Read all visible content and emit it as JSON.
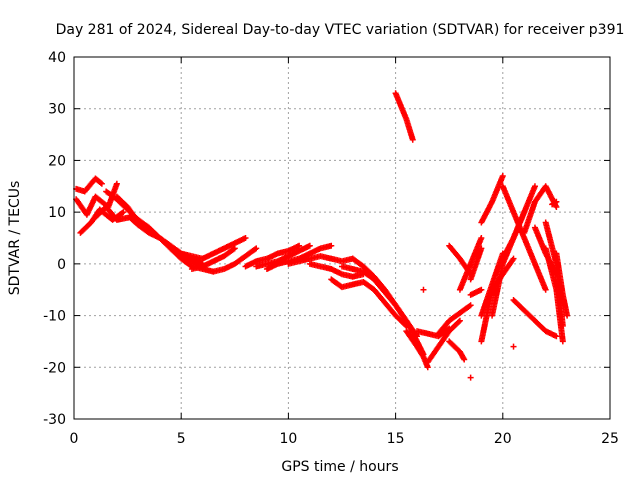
{
  "chart_data": {
    "type": "scatter",
    "title": "Day 281 of 2024, Sidereal Day-to-day VTEC variation (SDTVAR) for receiver p391",
    "xlabel": "GPS time / hours",
    "ylabel": "SDTVAR / TECUs",
    "xlim": [
      0,
      25
    ],
    "ylim": [
      -30,
      40
    ],
    "xticks": [
      0,
      5,
      10,
      15,
      20,
      25
    ],
    "yticks": [
      -30,
      -20,
      -10,
      0,
      10,
      20,
      30,
      40
    ],
    "grid": true,
    "marker": "+",
    "color": "#ff0000",
    "series": [
      {
        "name": "s01",
        "x": [
          0.1,
          0.5,
          1.0,
          1.3
        ],
        "y": [
          14.5,
          14.0,
          16.5,
          15.5
        ]
      },
      {
        "name": "s02",
        "x": [
          0.1,
          0.6,
          1.0,
          1.6,
          2.0
        ],
        "y": [
          12.5,
          9.5,
          13.0,
          11.0,
          15.5
        ]
      },
      {
        "name": "s03",
        "x": [
          0.3,
          0.8,
          1.2,
          1.8,
          2.3
        ],
        "y": [
          6.0,
          8.0,
          10.5,
          8.5,
          10.0
        ]
      },
      {
        "name": "s04",
        "x": [
          1.0,
          1.5,
          2.0,
          2.6,
          3.0,
          3.5,
          4.0,
          4.5,
          5.0,
          5.5,
          6.0
        ],
        "y": [
          9.0,
          11.0,
          8.5,
          9.0,
          7.5,
          6.0,
          5.0,
          3.5,
          2.0,
          1.0,
          0.0
        ]
      },
      {
        "name": "s05",
        "x": [
          1.5,
          2.0,
          2.5,
          3.0,
          3.5,
          4.0,
          4.5,
          5.0,
          5.5,
          6.0
        ],
        "y": [
          14.0,
          12.5,
          10.5,
          8.5,
          7.0,
          5.0,
          3.5,
          2.0,
          1.5,
          1.0
        ]
      },
      {
        "name": "s06",
        "x": [
          2.0,
          2.5,
          3.0,
          3.5,
          4.0,
          4.5,
          5.0,
          5.5,
          6.0
        ],
        "y": [
          13.0,
          11.0,
          8.0,
          6.5,
          5.0,
          3.0,
          1.5,
          0.5,
          -0.5
        ]
      },
      {
        "name": "s07",
        "x": [
          4.5,
          5.0,
          5.5,
          6.0,
          6.5
        ],
        "y": [
          3.0,
          1.0,
          -0.5,
          -1.0,
          -1.5
        ]
      },
      {
        "name": "s08",
        "x": [
          5.5,
          6.0,
          6.5,
          7.0,
          7.5
        ],
        "y": [
          -1.0,
          -0.5,
          0.5,
          1.5,
          3.0
        ]
      },
      {
        "name": "s09",
        "x": [
          6.0,
          6.5,
          7.0,
          7.5,
          8.0
        ],
        "y": [
          1.0,
          2.0,
          3.0,
          4.0,
          5.0
        ]
      },
      {
        "name": "s10",
        "x": [
          6.5,
          7.0,
          7.5,
          8.0,
          8.5
        ],
        "y": [
          -1.5,
          -1.0,
          0.0,
          1.5,
          3.0
        ]
      },
      {
        "name": "s11",
        "x": [
          8.0,
          8.5,
          9.0,
          9.5,
          10.0,
          10.5
        ],
        "y": [
          -0.5,
          0.5,
          1.0,
          2.0,
          2.5,
          3.5
        ]
      },
      {
        "name": "s12",
        "x": [
          8.5,
          9.0,
          9.5,
          10.0,
          10.5,
          11.0
        ],
        "y": [
          -0.5,
          0.0,
          0.5,
          1.5,
          2.5,
          3.5
        ]
      },
      {
        "name": "s13",
        "x": [
          9.0,
          9.5,
          10.0,
          10.5,
          11.0,
          11.5,
          12.0
        ],
        "y": [
          -1.0,
          0.0,
          0.5,
          1.0,
          2.0,
          3.0,
          3.5
        ]
      },
      {
        "name": "s14",
        "x": [
          10.0,
          10.5,
          11.0,
          11.5,
          12.0,
          12.5,
          13.0
        ],
        "y": [
          0.0,
          0.5,
          1.0,
          1.5,
          1.0,
          0.5,
          1.0
        ]
      },
      {
        "name": "s15",
        "x": [
          11.0,
          11.5,
          12.0,
          12.5,
          13.0,
          13.5
        ],
        "y": [
          0.0,
          -0.5,
          -1.0,
          -2.0,
          -2.5,
          -2.0
        ]
      },
      {
        "name": "s16",
        "x": [
          12.0,
          12.5,
          13.0,
          13.5,
          14.0,
          14.5,
          15.0,
          15.5
        ],
        "y": [
          -3.0,
          -4.5,
          -4.0,
          -3.5,
          -5.0,
          -7.5,
          -10.0,
          -12.0
        ]
      },
      {
        "name": "s17",
        "x": [
          12.5,
          13.0,
          13.5,
          14.0,
          14.5,
          15.0,
          15.5,
          16.0
        ],
        "y": [
          -0.5,
          -1.0,
          -1.5,
          -3.0,
          -5.5,
          -8.0,
          -11.0,
          -14.0
        ]
      },
      {
        "name": "s18",
        "x": [
          13.0,
          13.5,
          14.0,
          14.5,
          15.0,
          15.5,
          16.0,
          16.3
        ],
        "y": [
          1.0,
          -0.5,
          -2.5,
          -5.0,
          -8.0,
          -11.0,
          -15.0,
          -17.5
        ]
      },
      {
        "name": "s19",
        "x": [
          15.0,
          15.5,
          15.8
        ],
        "y": [
          33.0,
          28.0,
          24.0
        ]
      },
      {
        "name": "s20",
        "x": [
          15.5,
          16.0,
          16.3,
          16.5
        ],
        "y": [
          -13.0,
          -16.0,
          -18.0,
          -20.0
        ]
      },
      {
        "name": "s21",
        "x": [
          16.0,
          16.5,
          17.0,
          17.5
        ],
        "y": [
          -13.0,
          -13.5,
          -14.0,
          -12.5
        ]
      },
      {
        "name": "s22",
        "x": [
          16.3
        ],
        "y": [
          -5.0
        ]
      },
      {
        "name": "s23",
        "x": [
          16.5,
          17.0,
          17.5,
          18.0
        ],
        "y": [
          -19.0,
          -16.0,
          -13.0,
          -11.0
        ]
      },
      {
        "name": "s24",
        "x": [
          17.5,
          18.0,
          18.2
        ],
        "y": [
          -15.0,
          -17.0,
          -18.5
        ]
      },
      {
        "name": "s25",
        "x": [
          17.0,
          17.5,
          18.0,
          18.5
        ],
        "y": [
          -13.5,
          -11.0,
          -9.5,
          -8.0
        ]
      },
      {
        "name": "s26",
        "x": [
          17.5,
          18.0,
          18.5
        ],
        "y": [
          3.5,
          1.0,
          -2.0
        ]
      },
      {
        "name": "s27",
        "x": [
          18.5
        ],
        "y": [
          -22.0
        ]
      },
      {
        "name": "s28",
        "x": [
          18.5,
          19.0
        ],
        "y": [
          -6.0,
          -5.0
        ]
      },
      {
        "name": "s29",
        "x": [
          18.0,
          18.5,
          19.0
        ],
        "y": [
          -5.0,
          0.0,
          5.0
        ]
      },
      {
        "name": "s30",
        "x": [
          18.5,
          19.0
        ],
        "y": [
          -3.0,
          3.0
        ]
      },
      {
        "name": "s31",
        "x": [
          19.0,
          19.5,
          20.0
        ],
        "y": [
          8.0,
          12.0,
          17.0
        ]
      },
      {
        "name": "s32",
        "x": [
          19.0,
          19.5,
          20.0
        ],
        "y": [
          -10.0,
          -4.0,
          2.0
        ]
      },
      {
        "name": "s33",
        "x": [
          19.0,
          19.5,
          20.0,
          20.5
        ],
        "y": [
          -15.0,
          -5.0,
          -2.0,
          1.0
        ]
      },
      {
        "name": "s34",
        "x": [
          19.5,
          20.0,
          20.5,
          21.0
        ],
        "y": [
          -10.0,
          0.0,
          5.0,
          10.0
        ]
      },
      {
        "name": "s35",
        "x": [
          20.0,
          20.5,
          21.0,
          21.5
        ],
        "y": [
          1.0,
          5.0,
          10.0,
          15.0
        ]
      },
      {
        "name": "s36",
        "x": [
          20.0,
          20.5,
          21.0,
          21.5,
          22.0
        ],
        "y": [
          15.0,
          10.0,
          5.0,
          0.0,
          -5.0
        ]
      },
      {
        "name": "s37",
        "x": [
          20.5,
          21.0,
          21.5,
          22.0,
          22.5
        ],
        "y": [
          -7.0,
          -9.0,
          -11.0,
          -13.0,
          -14.0
        ]
      },
      {
        "name": "s38",
        "x": [
          20.5
        ],
        "y": [
          -16.0
        ]
      },
      {
        "name": "s39",
        "x": [
          21.0,
          21.5,
          22.0,
          22.5
        ],
        "y": [
          6.0,
          12.0,
          15.0,
          11.0
        ]
      },
      {
        "name": "s40",
        "x": [
          21.5,
          22.0,
          22.5
        ],
        "y": [
          7.0,
          2.0,
          -2.0
        ]
      },
      {
        "name": "s41",
        "x": [
          22.0,
          22.5,
          22.8
        ],
        "y": [
          8.0,
          0.0,
          -12.0
        ]
      },
      {
        "name": "s42",
        "x": [
          22.0,
          22.5,
          22.8
        ],
        "y": [
          3.0,
          -5.0,
          -15.0
        ]
      },
      {
        "name": "s43",
        "x": [
          22.5,
          22.8,
          23.0
        ],
        "y": [
          2.0,
          -6.0,
          -10.0
        ]
      },
      {
        "name": "s44",
        "x": [
          22.3,
          22.5
        ],
        "y": [
          11.5,
          12.0
        ]
      }
    ]
  }
}
